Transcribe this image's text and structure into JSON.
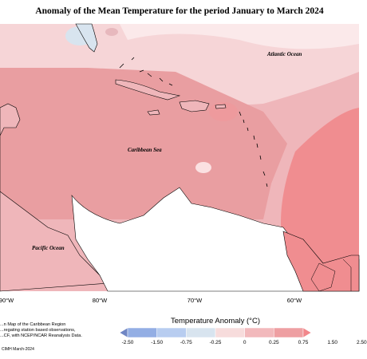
{
  "title": "Anomaly of the Mean Temperature for the period January to March 2024",
  "labels": {
    "atlantic": "Atlantic Ocean",
    "caribbean": "Caribbean Sea",
    "pacific": "Pacific Ocean"
  },
  "x_ticks": [
    "90°W",
    "80°W",
    "70°W",
    "60°W"
  ],
  "notes": [
    "...n Map of the Caribbean Region",
    "...regating station based observations,",
    "...CF, with NCEP/NCAR Reanalysis Data."
  ],
  "copyright": "CIMH March-2024",
  "legend": {
    "title": "Temperature Anomaly (°C)",
    "labels": [
      "-2.50",
      "-1.50",
      "-0.75",
      "-0.25",
      "0",
      "0.25",
      "0.75",
      "1.50",
      "2.50"
    ],
    "colors": [
      "#6f86c4",
      "#93aee4",
      "#b8cdf0",
      "#d8e4ef",
      "#f7dcdc",
      "#f2b9bc",
      "#ee9fa2",
      "#f2878b"
    ]
  }
}
